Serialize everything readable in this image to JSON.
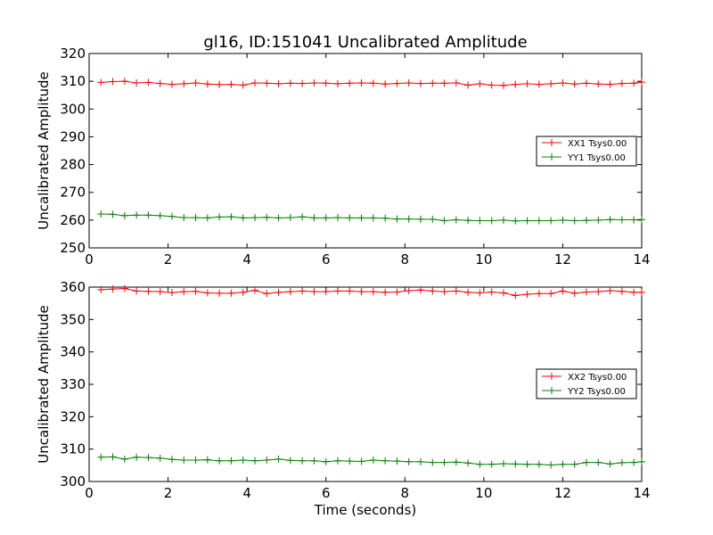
{
  "chart_data": [
    {
      "type": "line",
      "title": "gl16, ID:151041 Uncalibrated Amplitude",
      "xlabel": "",
      "ylabel": "Uncalibrated Amplitude",
      "xlim": [
        0,
        14
      ],
      "ylim": [
        250,
        320
      ],
      "xticks": [
        "0",
        "2",
        "4",
        "6",
        "8",
        "10",
        "12",
        "14"
      ],
      "yticks": [
        "250",
        "260",
        "270",
        "280",
        "290",
        "300",
        "310",
        "320"
      ],
      "legend_position": "center-right",
      "x": [
        0.3,
        0.6,
        0.9,
        1.2,
        1.5,
        1.8,
        2.1,
        2.4,
        2.7,
        3.0,
        3.3,
        3.6,
        3.9,
        4.2,
        4.5,
        4.8,
        5.1,
        5.4,
        5.7,
        6.0,
        6.3,
        6.6,
        6.9,
        7.2,
        7.5,
        7.8,
        8.1,
        8.4,
        8.7,
        9.0,
        9.3,
        9.6,
        9.9,
        10.2,
        10.5,
        10.8,
        11.1,
        11.4,
        11.7,
        12.0,
        12.3,
        12.6,
        12.9,
        13.2,
        13.5,
        13.8,
        14.0
      ],
      "series": [
        {
          "name": "XX1 Tsys0.00",
          "color": "#ff0000",
          "values": [
            309.6,
            309.9,
            310.0,
            309.4,
            309.6,
            309.2,
            308.9,
            309.1,
            309.4,
            309.0,
            308.8,
            308.9,
            308.6,
            309.4,
            309.3,
            309.1,
            309.3,
            309.2,
            309.4,
            309.3,
            309.1,
            309.3,
            309.4,
            309.3,
            309.0,
            309.2,
            309.4,
            309.2,
            309.3,
            309.3,
            309.4,
            308.6,
            309.1,
            308.6,
            308.5,
            308.9,
            309.1,
            308.9,
            309.1,
            309.4,
            309.0,
            309.3,
            309.0,
            308.9,
            309.2,
            309.3,
            309.7
          ]
        },
        {
          "name": "YY1 Tsys0.00",
          "color": "#008000",
          "values": [
            262.2,
            262.1,
            261.6,
            261.8,
            261.8,
            261.6,
            261.3,
            260.9,
            260.9,
            260.8,
            261.1,
            261.2,
            260.8,
            260.9,
            261.0,
            260.8,
            260.9,
            261.2,
            260.8,
            260.8,
            260.9,
            260.8,
            260.8,
            260.8,
            260.7,
            260.4,
            260.4,
            260.3,
            260.3,
            259.8,
            260.1,
            259.9,
            259.8,
            259.8,
            260.0,
            259.7,
            259.8,
            259.8,
            259.8,
            260.0,
            259.8,
            259.9,
            260.0,
            260.2,
            260.1,
            260.1,
            260.2
          ]
        }
      ]
    },
    {
      "type": "line",
      "title": "",
      "xlabel": "Time (seconds)",
      "ylabel": "Uncalibrated Amplitude",
      "xlim": [
        0,
        14
      ],
      "ylim": [
        300,
        360
      ],
      "xticks": [
        "0",
        "2",
        "4",
        "6",
        "8",
        "10",
        "12",
        "14"
      ],
      "yticks": [
        "300",
        "310",
        "320",
        "330",
        "340",
        "350",
        "360"
      ],
      "legend_position": "center-right",
      "x": [
        0.3,
        0.6,
        0.9,
        1.2,
        1.5,
        1.8,
        2.1,
        2.4,
        2.7,
        3.0,
        3.3,
        3.6,
        3.9,
        4.2,
        4.5,
        4.8,
        5.1,
        5.4,
        5.7,
        6.0,
        6.3,
        6.6,
        6.9,
        7.2,
        7.5,
        7.8,
        8.1,
        8.4,
        8.7,
        9.0,
        9.3,
        9.6,
        9.9,
        10.2,
        10.5,
        10.8,
        11.1,
        11.4,
        11.7,
        12.0,
        12.3,
        12.6,
        12.9,
        13.2,
        13.5,
        13.8,
        14.0
      ],
      "series": [
        {
          "name": "XX2 Tsys0.00",
          "color": "#ff0000",
          "values": [
            359.2,
            359.4,
            359.6,
            358.8,
            358.7,
            358.6,
            358.3,
            358.6,
            358.7,
            358.2,
            358.1,
            358.1,
            358.4,
            359.0,
            358.0,
            358.4,
            358.6,
            358.8,
            358.6,
            358.6,
            358.8,
            358.8,
            358.6,
            358.6,
            358.4,
            358.5,
            358.9,
            359.1,
            358.8,
            358.6,
            358.8,
            358.4,
            358.2,
            358.5,
            358.2,
            357.4,
            357.8,
            358.0,
            358.0,
            358.8,
            358.1,
            358.5,
            358.6,
            358.9,
            358.7,
            358.4,
            358.4
          ]
        },
        {
          "name": "YY2 Tsys0.00",
          "color": "#008000",
          "values": [
            307.5,
            307.6,
            306.9,
            307.5,
            307.4,
            307.2,
            306.8,
            306.6,
            306.6,
            306.7,
            306.4,
            306.4,
            306.6,
            306.4,
            306.6,
            306.9,
            306.5,
            306.4,
            306.4,
            306.1,
            306.4,
            306.3,
            306.2,
            306.6,
            306.4,
            306.3,
            306.1,
            306.1,
            305.9,
            305.9,
            306.0,
            305.7,
            305.3,
            305.3,
            305.5,
            305.4,
            305.3,
            305.3,
            305.1,
            305.3,
            305.3,
            305.9,
            305.9,
            305.4,
            305.8,
            305.9,
            306.1
          ]
        }
      ]
    }
  ]
}
